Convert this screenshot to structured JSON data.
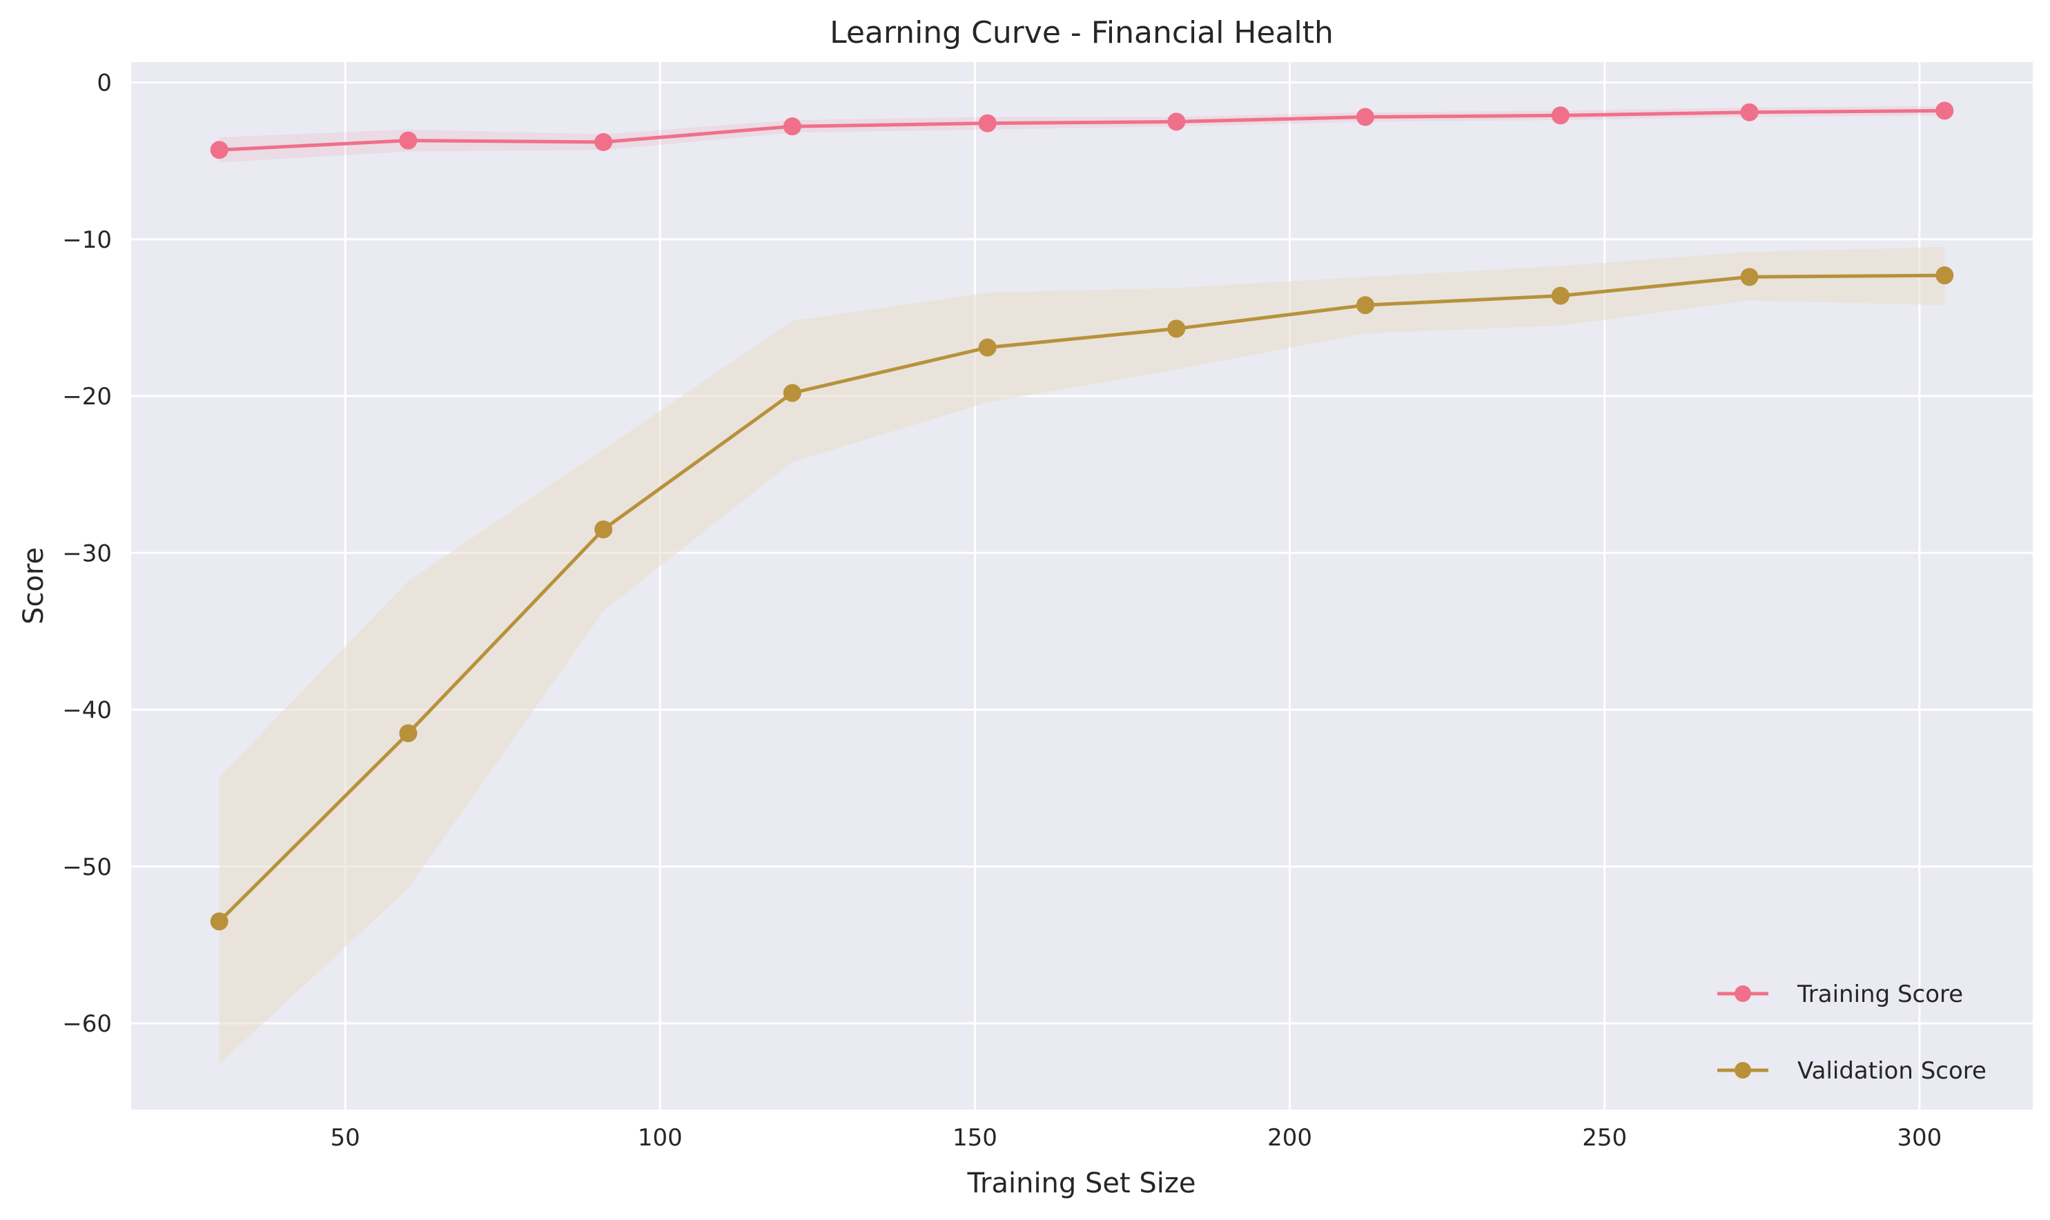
{
  "chart_data": {
    "type": "line",
    "title": "Learning Curve - Financial Health",
    "xlabel": "Training Set Size",
    "ylabel": "Score",
    "xlim": [
      16,
      318
    ],
    "ylim": [
      -65.5,
      1.3
    ],
    "xticks": [
      50,
      100,
      150,
      200,
      250,
      300
    ],
    "yticks": [
      0,
      -10,
      -20,
      -30,
      -40,
      -50,
      -60
    ],
    "xtick_labels": [
      "50",
      "100",
      "150",
      "200",
      "250",
      "300"
    ],
    "ytick_labels": [
      "0",
      "−10",
      "−20",
      "−30",
      "−40",
      "−50",
      "−60"
    ],
    "grid": true,
    "legend_position": "lower-right",
    "x": [
      30,
      60,
      91,
      121,
      152,
      182,
      212,
      243,
      273,
      304
    ],
    "series": [
      {
        "name": "Training Score",
        "color": "#f0708a",
        "band_color": "#f0708a",
        "band_opacity": 0.12,
        "values": [
          -4.3,
          -3.7,
          -3.8,
          -2.8,
          -2.6,
          -2.5,
          -2.2,
          -2.1,
          -1.9,
          -1.8
        ],
        "lower": [
          -5.1,
          -4.4,
          -4.3,
          -3.2,
          -3.0,
          -2.8,
          -2.5,
          -2.4,
          -2.2,
          -2.1
        ],
        "upper": [
          -3.5,
          -3.0,
          -3.3,
          -2.4,
          -2.2,
          -2.2,
          -1.9,
          -1.8,
          -1.6,
          -1.5
        ]
      },
      {
        "name": "Validation Score",
        "color": "#b8913a",
        "band_color": "#e7dccb",
        "band_opacity": 0.55,
        "values": [
          -53.5,
          -41.5,
          -28.5,
          -19.8,
          -16.9,
          -15.7,
          -14.2,
          -13.6,
          -12.4,
          -12.3
        ],
        "lower": [
          -62.6,
          -51.4,
          -33.7,
          -24.2,
          -20.4,
          -18.3,
          -16.0,
          -15.5,
          -13.9,
          -14.2
        ],
        "upper": [
          -44.3,
          -31.8,
          -23.4,
          -15.2,
          -13.4,
          -13.1,
          -12.4,
          -11.7,
          -10.8,
          -10.5
        ]
      }
    ]
  }
}
